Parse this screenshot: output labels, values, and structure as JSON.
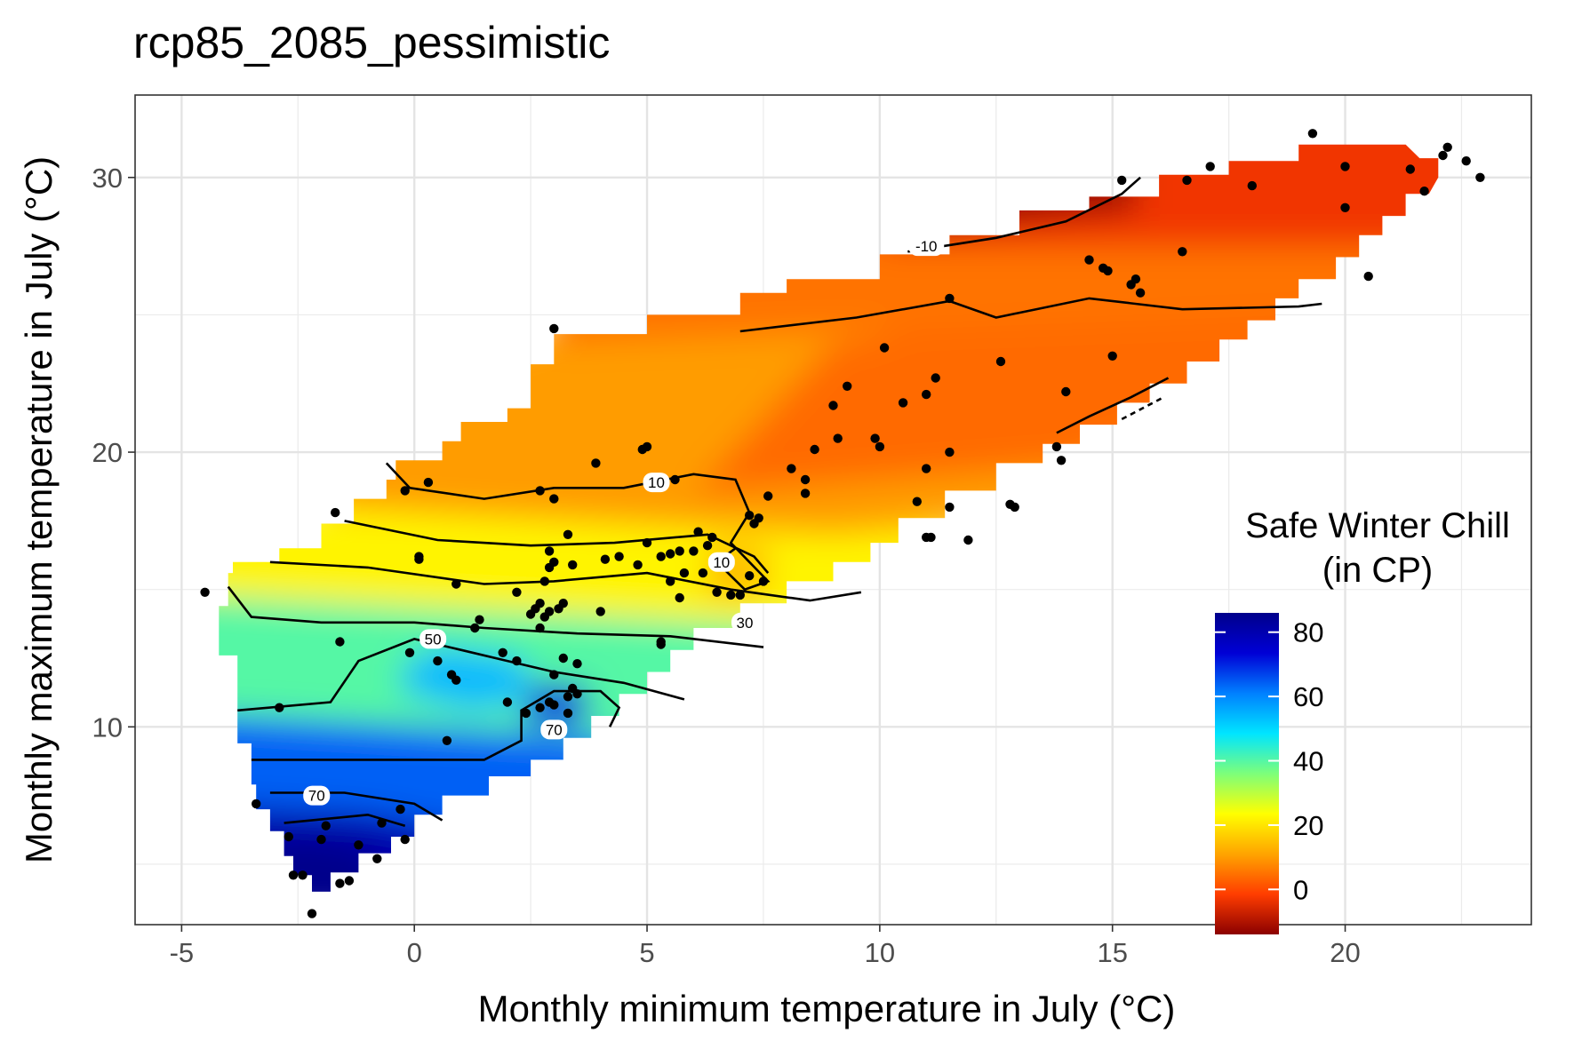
{
  "chart_data": {
    "type": "contour",
    "title": "rcp85_2085_pessimistic",
    "xlabel": "Monthly minimum temperature in July (°C)",
    "ylabel": "Monthly maximum temperature in July (°C)",
    "xlim": [
      -6,
      24
    ],
    "ylim": [
      2.8,
      33
    ],
    "x_ticks": [
      -5,
      0,
      5,
      10,
      15,
      20
    ],
    "y_ticks": [
      10,
      20,
      30
    ],
    "grid": true,
    "legend": {
      "title_lines": [
        "Safe Winter Chill",
        "(in CP)"
      ],
      "ticks": [
        0,
        20,
        40,
        60,
        80
      ],
      "range": [
        -14,
        86
      ],
      "placement": "right",
      "colors": [
        "#8b0000",
        "#ff3d00",
        "#ffa400",
        "#ffff00",
        "#7dff7a",
        "#00e5ff",
        "#0080ff",
        "#0000d6",
        "#00008b"
      ]
    },
    "contour_labels": [
      {
        "x": 11.0,
        "y": 27.5,
        "text": "-10"
      },
      {
        "x": 0.4,
        "y": 13.2,
        "text": "50"
      },
      {
        "x": 5.2,
        "y": 18.9,
        "text": "10"
      },
      {
        "x": 6.6,
        "y": 16.0,
        "text": "10"
      },
      {
        "x": 7.1,
        "y": 13.8,
        "text": "30"
      },
      {
        "x": 3.0,
        "y": 9.9,
        "text": "70"
      },
      {
        "x": -2.1,
        "y": 7.5,
        "text": "70"
      }
    ],
    "points": [
      [
        19.3,
        31.6
      ],
      [
        22.2,
        31.1
      ],
      [
        22.1,
        30.8
      ],
      [
        22.6,
        30.6
      ],
      [
        22.9,
        30.0
      ],
      [
        15.2,
        29.9
      ],
      [
        16.6,
        29.9
      ],
      [
        17.1,
        30.4
      ],
      [
        18.0,
        29.7
      ],
      [
        20.0,
        30.4
      ],
      [
        21.4,
        30.3
      ],
      [
        21.7,
        29.5
      ],
      [
        20.0,
        28.9
      ],
      [
        20.5,
        26.4
      ],
      [
        14.5,
        27.0
      ],
      [
        14.8,
        26.7
      ],
      [
        14.9,
        26.6
      ],
      [
        15.5,
        26.3
      ],
      [
        15.4,
        26.1
      ],
      [
        15.6,
        25.8
      ],
      [
        16.5,
        27.3
      ],
      [
        11.5,
        25.6
      ],
      [
        3.0,
        24.5
      ],
      [
        12.6,
        23.3
      ],
      [
        15.0,
        23.5
      ],
      [
        10.1,
        23.8
      ],
      [
        9.0,
        21.7
      ],
      [
        9.3,
        22.4
      ],
      [
        11.0,
        22.1
      ],
      [
        11.2,
        22.7
      ],
      [
        10.5,
        21.8
      ],
      [
        14.0,
        22.2
      ],
      [
        8.6,
        20.1
      ],
      [
        9.1,
        20.5
      ],
      [
        9.9,
        20.5
      ],
      [
        10.0,
        20.2
      ],
      [
        11.5,
        20.0
      ],
      [
        13.8,
        20.2
      ],
      [
        13.9,
        19.7
      ],
      [
        11.0,
        19.4
      ],
      [
        8.1,
        19.4
      ],
      [
        8.4,
        19.0
      ],
      [
        8.4,
        18.5
      ],
      [
        7.6,
        18.4
      ],
      [
        5.0,
        20.2
      ],
      [
        4.9,
        20.1
      ],
      [
        3.9,
        19.6
      ],
      [
        0.3,
        18.9
      ],
      [
        -0.2,
        18.6
      ],
      [
        2.7,
        18.6
      ],
      [
        3.0,
        18.3
      ],
      [
        5.6,
        19.0
      ],
      [
        10.8,
        18.2
      ],
      [
        11.5,
        18.0
      ],
      [
        12.8,
        18.1
      ],
      [
        12.9,
        18.0
      ],
      [
        11.0,
        16.9
      ],
      [
        11.1,
        16.9
      ],
      [
        11.9,
        16.8
      ],
      [
        -1.7,
        17.8
      ],
      [
        7.3,
        17.4
      ],
      [
        7.2,
        17.7
      ],
      [
        7.4,
        17.6
      ],
      [
        6.1,
        17.1
      ],
      [
        6.4,
        16.9
      ],
      [
        5.0,
        16.7
      ],
      [
        6.3,
        16.6
      ],
      [
        6.0,
        16.4
      ],
      [
        3.3,
        17.0
      ],
      [
        2.9,
        16.4
      ],
      [
        5.5,
        16.3
      ],
      [
        5.7,
        16.4
      ],
      [
        5.3,
        16.2
      ],
      [
        4.4,
        16.2
      ],
      [
        4.1,
        16.1
      ],
      [
        4.8,
        15.9
      ],
      [
        3.4,
        15.9
      ],
      [
        2.9,
        15.8
      ],
      [
        3.0,
        16.0
      ],
      [
        0.1,
        16.1
      ],
      [
        0.1,
        16.2
      ],
      [
        6.2,
        15.6
      ],
      [
        5.8,
        15.6
      ],
      [
        5.5,
        15.3
      ],
      [
        7.2,
        15.5
      ],
      [
        7.5,
        15.3
      ],
      [
        0.9,
        15.2
      ],
      [
        2.8,
        15.3
      ],
      [
        2.2,
        14.9
      ],
      [
        6.5,
        14.9
      ],
      [
        6.8,
        14.8
      ],
      [
        7.0,
        14.8
      ],
      [
        5.7,
        14.7
      ],
      [
        -4.5,
        14.9
      ],
      [
        4.0,
        14.2
      ],
      [
        2.6,
        14.3
      ],
      [
        2.7,
        14.5
      ],
      [
        2.9,
        14.2
      ],
      [
        3.2,
        14.5
      ],
      [
        3.1,
        14.3
      ],
      [
        2.8,
        14.0
      ],
      [
        2.5,
        14.1
      ],
      [
        1.4,
        13.9
      ],
      [
        1.3,
        13.6
      ],
      [
        2.7,
        13.6
      ],
      [
        -1.6,
        13.1
      ],
      [
        5.3,
        13.1
      ],
      [
        5.3,
        13.0
      ],
      [
        -0.1,
        12.7
      ],
      [
        0.5,
        12.4
      ],
      [
        1.9,
        12.7
      ],
      [
        2.2,
        12.4
      ],
      [
        3.2,
        12.5
      ],
      [
        3.5,
        12.3
      ],
      [
        0.8,
        11.9
      ],
      [
        0.9,
        11.7
      ],
      [
        3.0,
        11.9
      ],
      [
        3.4,
        11.4
      ],
      [
        3.5,
        11.2
      ],
      [
        3.3,
        11.1
      ],
      [
        2.0,
        10.9
      ],
      [
        2.9,
        10.9
      ],
      [
        3.0,
        10.8
      ],
      [
        2.7,
        10.7
      ],
      [
        3.3,
        10.5
      ],
      [
        2.4,
        10.5
      ],
      [
        -2.9,
        10.7
      ],
      [
        0.7,
        9.5
      ],
      [
        -3.4,
        7.2
      ],
      [
        -0.3,
        7.0
      ],
      [
        -0.7,
        6.5
      ],
      [
        -1.9,
        6.4
      ],
      [
        -2.7,
        6.0
      ],
      [
        -2.0,
        5.9
      ],
      [
        -0.2,
        5.9
      ],
      [
        -1.2,
        5.7
      ],
      [
        -0.8,
        5.2
      ],
      [
        -2.6,
        4.6
      ],
      [
        -2.4,
        4.6
      ],
      [
        -1.6,
        4.3
      ],
      [
        -1.4,
        4.4
      ],
      [
        -2.2,
        3.2
      ]
    ]
  }
}
